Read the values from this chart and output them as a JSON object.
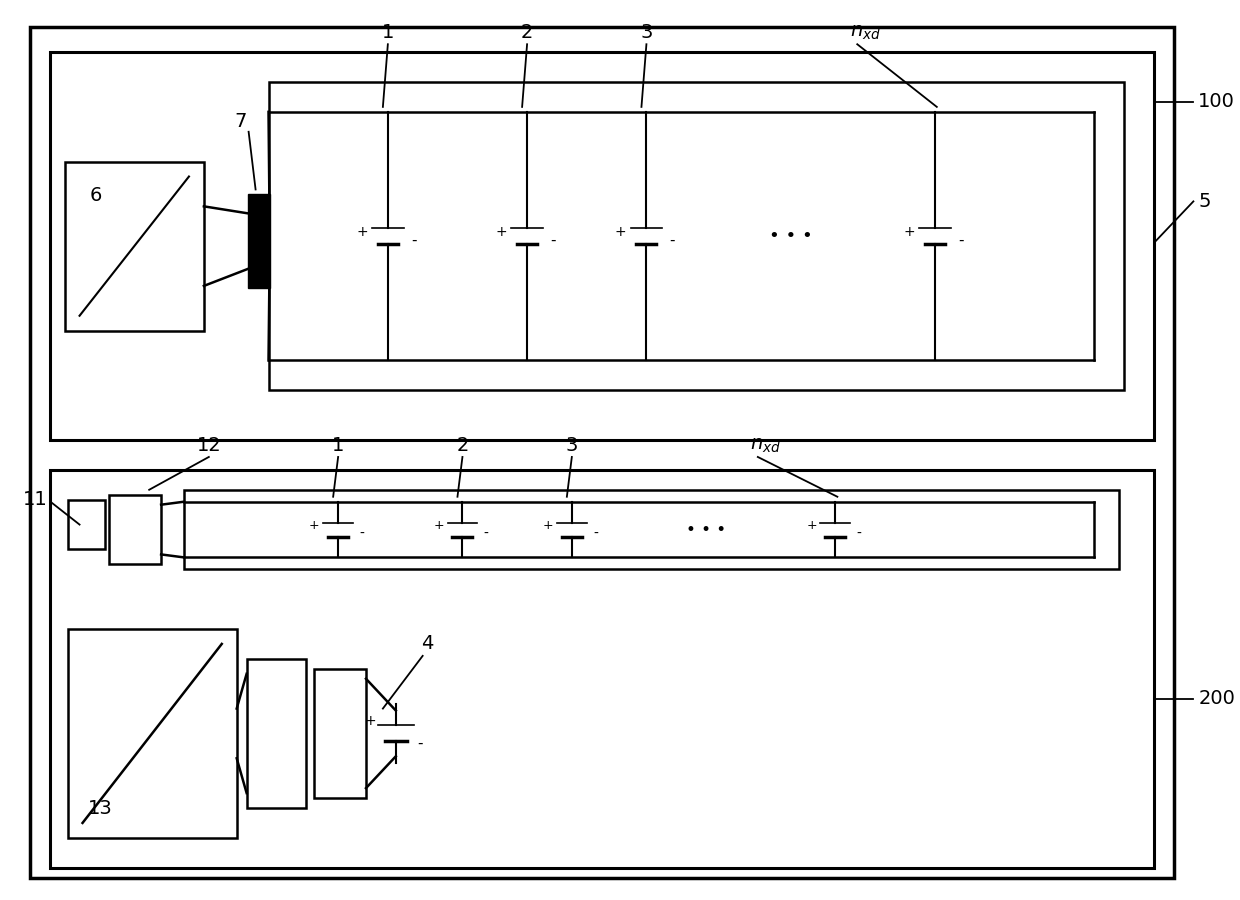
{
  "bg_color": "#ffffff",
  "fig_width": 12.4,
  "fig_height": 9.0
}
